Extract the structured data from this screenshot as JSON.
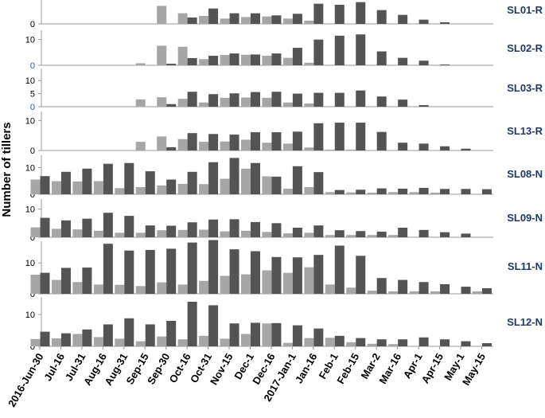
{
  "chart_data": {
    "type": "bar",
    "ylabel": "Number of tillers",
    "categories": [
      "2016-Jun-30",
      "Jul-16",
      "Jul-31",
      "Aug-16",
      "Aug-31",
      "Sep-15",
      "Sep-30",
      "Oct-16",
      "Oct-31",
      "Nov-15",
      "Dec-1",
      "Dec-16",
      "2017-Jan-1",
      "Jan-16",
      "Feb-1",
      "Feb-15",
      "Mar-2",
      "Mar-16",
      "Apr-1",
      "Apr-15",
      "May-1",
      "May-15"
    ],
    "colors": {
      "light": "#a6a6a6",
      "dark": "#545454",
      "axis": "#999999",
      "label": "#1f3864",
      "tick_blue": "#2e5aa8"
    },
    "panels": [
      {
        "label": "SL01-R",
        "ticks": [
          {
            "value": 0,
            "text": "0",
            "color": "black"
          }
        ],
        "ymax": 4.2,
        "light": [
          null,
          null,
          null,
          null,
          null,
          null,
          3.4,
          2.0,
          1.5,
          1.0,
          1.3,
          1.4,
          1.0,
          0.6,
          0,
          0,
          0,
          0,
          0,
          0,
          0,
          0
        ],
        "dark": [
          null,
          null,
          null,
          null,
          null,
          null,
          0,
          1.2,
          2.9,
          2.0,
          2.0,
          1.6,
          1.9,
          3.8,
          3.6,
          4.1,
          2.6,
          1.7,
          0.8,
          0.3,
          null,
          null
        ]
      },
      {
        "label": "SL02-R",
        "ticks": [
          {
            "value": 10,
            "text": "10",
            "color": "black"
          },
          {
            "value": 0,
            "text": "0",
            "color": "blue"
          }
        ],
        "ymax": 13,
        "light": [
          null,
          null,
          null,
          null,
          null,
          0.8,
          7.6,
          7.2,
          2.4,
          4.0,
          4.1,
          3.7,
          2.9,
          1.0,
          0,
          0,
          0,
          0,
          0,
          0,
          0,
          0
        ],
        "dark": [
          null,
          null,
          null,
          null,
          null,
          0,
          0.6,
          2.8,
          3.7,
          4.6,
          4.2,
          4.6,
          6.8,
          10.0,
          11.5,
          12.0,
          5.4,
          2.9,
          1.8,
          0.3,
          null,
          null
        ]
      },
      {
        "label": "SL03-R",
        "ticks": [
          {
            "value": 10,
            "text": "10",
            "color": "black"
          },
          {
            "value": 5,
            "text": "5",
            "color": "black"
          },
          {
            "value": 0,
            "text": "0",
            "color": "blue"
          }
        ],
        "ymax": 14,
        "light": [
          null,
          null,
          null,
          null,
          null,
          2.8,
          3.6,
          3.0,
          1.6,
          3.4,
          3.5,
          3.4,
          1.6,
          1.2,
          0,
          0,
          0,
          0,
          0,
          0,
          0,
          0
        ],
        "dark": [
          null,
          null,
          null,
          null,
          null,
          0,
          1.0,
          5.7,
          4.8,
          5.1,
          5.6,
          5.7,
          5.0,
          5.3,
          5.3,
          6.2,
          3.9,
          2.7,
          0.6,
          null,
          null,
          null
        ]
      },
      {
        "label": "SL13-R",
        "ticks": [
          {
            "value": 10,
            "text": "10",
            "color": "black"
          },
          {
            "value": 0,
            "text": "0",
            "color": "black"
          }
        ],
        "ymax": 12.5,
        "light": [
          null,
          null,
          null,
          null,
          null,
          2.9,
          4.7,
          3.8,
          2.9,
          3.0,
          3.6,
          2.6,
          2.3,
          1.0,
          0.3,
          0.3,
          0,
          0,
          0,
          0,
          0,
          0
        ],
        "dark": [
          null,
          null,
          null,
          null,
          null,
          0,
          1.1,
          5.8,
          5.5,
          5.3,
          6.1,
          6.1,
          6.3,
          9.1,
          9.3,
          9.3,
          6.2,
          2.6,
          2.3,
          1.4,
          0.6,
          null
        ]
      },
      {
        "label": "SL08-N",
        "ticks": [
          {
            "value": 10,
            "text": "10",
            "color": "black"
          },
          {
            "value": 0,
            "text": "0",
            "color": "black"
          }
        ],
        "ymax": 14,
        "light": [
          5.5,
          4.9,
          4.8,
          4.9,
          2.3,
          2.7,
          3.3,
          3.9,
          3.8,
          5.8,
          9.6,
          6.7,
          2.1,
          2.7,
          0.8,
          0.7,
          0.6,
          0.8,
          0.8,
          0.6,
          0,
          0
        ],
        "dark": [
          6.8,
          8.4,
          9.6,
          11.4,
          11.7,
          8.6,
          5.5,
          8.4,
          12.0,
          13.6,
          11.7,
          6.6,
          10.5,
          8.3,
          1.6,
          1.7,
          2.2,
          2.1,
          2.4,
          2.0,
          2.0,
          1.9
        ]
      },
      {
        "label": "SL09-N",
        "ticks": [
          {
            "value": 10,
            "text": "10",
            "color": "black"
          },
          {
            "value": 0,
            "text": "0",
            "color": "black"
          }
        ],
        "ymax": 13,
        "light": [
          3.5,
          3.0,
          2.8,
          2.3,
          1.6,
          1.6,
          2.5,
          2.6,
          2.7,
          2.1,
          2.3,
          1.9,
          1.4,
          1.6,
          0.8,
          0.8,
          0.8,
          0.8,
          0,
          0,
          0,
          0
        ],
        "dark": [
          6.9,
          6.0,
          6.6,
          8.7,
          7.6,
          4.2,
          4.1,
          5.3,
          6.3,
          6.4,
          5.4,
          5.0,
          3.4,
          4.2,
          2.5,
          2.2,
          2.0,
          3.4,
          2.6,
          1.8,
          1.3,
          null
        ]
      },
      {
        "label": "SL11-N",
        "ticks": [
          {
            "value": 10,
            "text": "10",
            "color": "black"
          },
          {
            "value": 0,
            "text": "0",
            "color": "black"
          }
        ],
        "ymax": 16.5,
        "light": [
          6.2,
          4.5,
          3.8,
          3.0,
          2.9,
          2.5,
          3.7,
          3.0,
          4.2,
          5.8,
          6.3,
          7.6,
          6.8,
          8.6,
          3.0,
          2.0,
          1.0,
          0.8,
          0.8,
          0.8,
          0,
          0.8
        ],
        "dark": [
          6.8,
          8.4,
          8.5,
          16.2,
          14.0,
          14.2,
          14.6,
          16.6,
          17.4,
          14.4,
          13.8,
          11.9,
          11.8,
          12.6,
          15.6,
          12.3,
          5.1,
          4.5,
          3.8,
          3.1,
          2.3,
          1.8
        ]
      },
      {
        "label": "SL12-N",
        "ticks": [
          {
            "value": 10,
            "text": "10",
            "color": "black"
          },
          {
            "value": 0,
            "text": "0",
            "color": "black"
          }
        ],
        "ymax": 15,
        "light": [
          2.3,
          2.5,
          3.9,
          2.9,
          2.4,
          1.6,
          3.1,
          2.2,
          3.3,
          2.4,
          3.9,
          7.2,
          1.1,
          2.6,
          2.7,
          1.3,
          0.8,
          0.7,
          0,
          0,
          0,
          0
        ],
        "dark": [
          4.6,
          4.1,
          5.3,
          6.9,
          8.8,
          6.9,
          8.0,
          14.0,
          12.9,
          7.2,
          7.4,
          7.3,
          6.6,
          5.6,
          3.3,
          2.6,
          2.2,
          2.2,
          2.8,
          2.2,
          1.6,
          1.0
        ]
      }
    ]
  }
}
